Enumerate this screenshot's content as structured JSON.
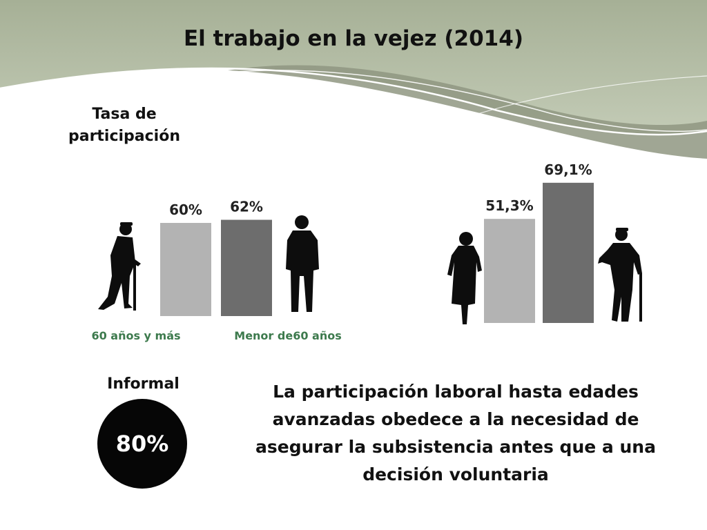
{
  "title": "El trabajo en la vejez (2014)",
  "subtitle": [
    "Tasa de",
    "participación"
  ],
  "colors": {
    "header_bg": "#aab49c",
    "bar_light": "#b3b3b3",
    "bar_dark": "#6d6d6d",
    "label_green": "#3d7a4d",
    "silhouette": "#0d0d0d"
  },
  "chart_data": [
    {
      "type": "bar",
      "categories": [
        "60 años y más",
        "Menor de60 años"
      ],
      "values": [
        60,
        62
      ],
      "data_labels": [
        "60%",
        "62%"
      ],
      "category_icons": [
        "elderly-man-cane-icon",
        "standing-man-icon"
      ]
    },
    {
      "type": "bar",
      "categories": [
        "",
        ""
      ],
      "values": [
        51.3,
        69.1
      ],
      "data_labels": [
        "51,3%",
        "69,1%"
      ],
      "category_icons": [
        "elderly-woman-icon",
        "elderly-man-cane-icon"
      ]
    }
  ],
  "informal": {
    "label": "Informal",
    "value": "80%"
  },
  "statement": "La participación laboral hasta edades avanzadas obedece a la necesidad de asegurar la subsistencia antes que a una decisión voluntaria"
}
